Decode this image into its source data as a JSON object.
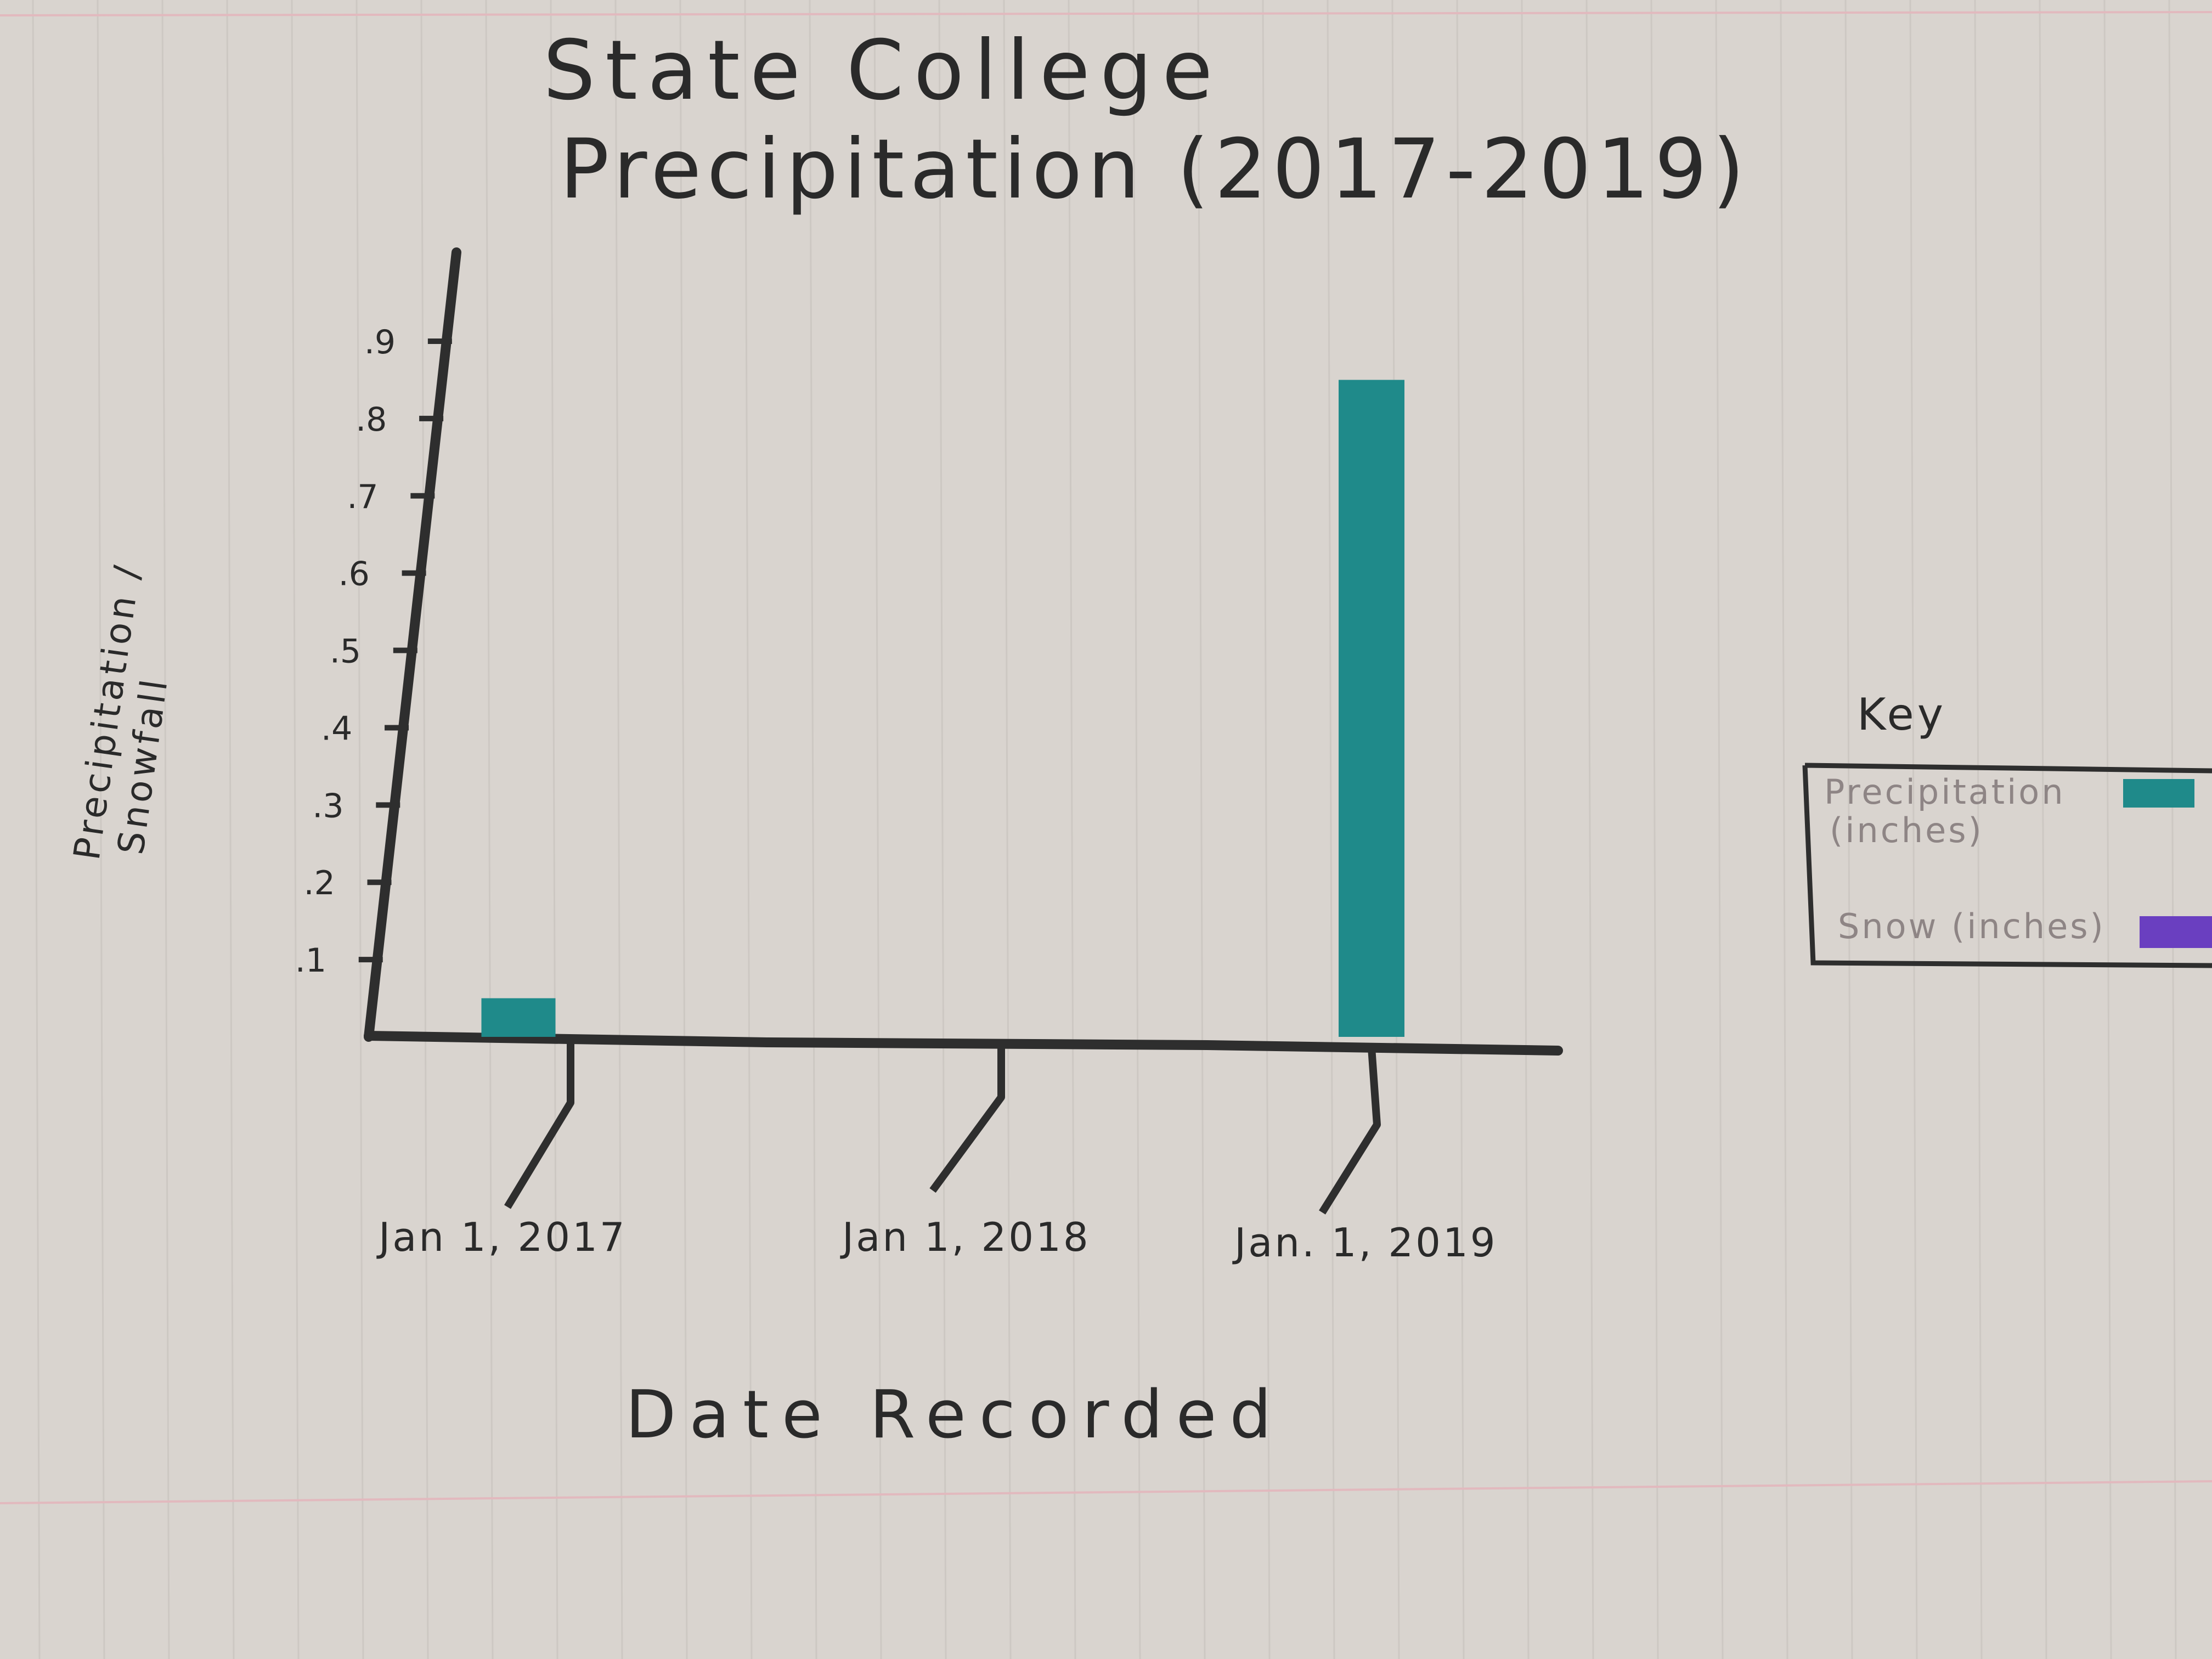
{
  "title_line1": "State College",
  "title_line2": "Precipitation (2017-2019)",
  "chart_data": {
    "type": "bar",
    "title": "State College Precipitation (2017-2019)",
    "xlabel": "Date Recorded",
    "ylabel": "Precipitation / Snowfall",
    "ylabel_line1": "Precipitation /",
    "ylabel_line2": "Snowfall",
    "ylim": [
      0,
      0.9
    ],
    "yticks": [
      0.1,
      0.2,
      0.3,
      0.4,
      0.5,
      0.6,
      0.7,
      0.8,
      0.9
    ],
    "ytick_labels": [
      ".1",
      ".2",
      ".3",
      ".4",
      ".5",
      ".6",
      ".7",
      ".8",
      ".9"
    ],
    "categories": [
      "Jan 1, 2017",
      "Jan 1, 2018",
      "Jan. 1, 2019"
    ],
    "series": [
      {
        "name": "Precipitation (inches)",
        "color": "#1f8a8a",
        "values": [
          0.05,
          0,
          0.85
        ]
      },
      {
        "name": "Snow (inches)",
        "color": "#6a3fc0",
        "values": [
          0,
          0,
          0
        ]
      }
    ],
    "grid": false,
    "legend": {
      "title": "Key",
      "placement": "right",
      "items": [
        {
          "label_line1": "Precipitation",
          "label_line2": "(inches)",
          "color": "#1f8a8a"
        },
        {
          "label_line1": "Snow (inches)",
          "label_line2": "",
          "color": "#6a3fc0"
        }
      ]
    }
  }
}
